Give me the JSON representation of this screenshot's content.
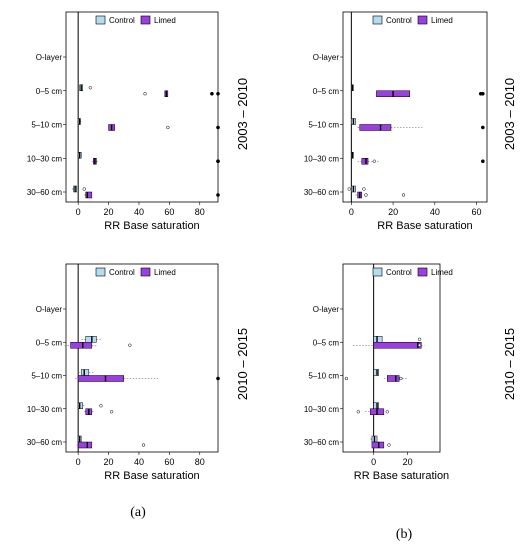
{
  "figure": {
    "period_labels": [
      "2003 – 2010",
      "2010 – 2015"
    ],
    "subfigure_labels": [
      "(a)",
      "(b)"
    ]
  },
  "colors": {
    "control": "#b3dcf0",
    "limed": "#9b3fe0",
    "axis": "#000000",
    "whisker": "#555555"
  },
  "chart_data": [
    {
      "id": "a-2003-2010",
      "type": "boxplot",
      "categories": [
        "O-layer",
        "0–5 cm",
        "5–10 cm",
        "10–30 cm",
        "30–60 cm"
      ],
      "category_labels": [
        "O-layer",
        "0–5 cm",
        "5–10 cm",
        "10–30 cm",
        "30–60 cm"
      ],
      "xlabel": "RR Base saturation",
      "xlim": [
        -8,
        92
      ],
      "xticks": [
        0,
        20,
        40,
        60,
        80
      ],
      "tick_labels": [
        "0",
        "20",
        "40",
        "60",
        "80"
      ],
      "legend": [
        "Control",
        "Limed"
      ],
      "series": [
        {
          "name": "Control",
          "boxes": [
            null,
            {
              "min": 1,
              "q1": 1,
              "median": 2,
              "q3": 3,
              "max": 3,
              "outliers": [
                8
              ]
            },
            {
              "min": 0,
              "q1": 0,
              "median": 1,
              "q3": 1.5,
              "max": 2,
              "outliers": []
            },
            {
              "min": 0,
              "q1": 0,
              "median": 1,
              "q3": 2,
              "max": 2,
              "outliers": []
            },
            {
              "min": -4,
              "q1": -3,
              "median": -2,
              "q3": -1,
              "max": -1,
              "outliers": [
                4
              ]
            }
          ]
        },
        {
          "name": "Limed",
          "boxes": [
            null,
            {
              "min": 57,
              "q1": 57,
              "median": 58,
              "q3": 59,
              "max": 59,
              "outliers": [
                44,
                88,
                92
              ]
            },
            {
              "min": 20,
              "q1": 20,
              "median": 22,
              "q3": 24,
              "max": 24,
              "outliers": [
                59,
                92
              ]
            },
            {
              "min": 9,
              "q1": 10,
              "median": 11,
              "q3": 12,
              "max": 13,
              "outliers": [
                92,
                92
              ]
            },
            {
              "min": 4,
              "q1": 5,
              "median": 6,
              "q3": 9,
              "max": 9,
              "outliers": [
                92
              ]
            }
          ]
        }
      ]
    },
    {
      "id": "b-2003-2010",
      "type": "boxplot",
      "categories": [
        "O-layer",
        "0–5 cm",
        "5–10 cm",
        "10–30 cm",
        "30–60 cm"
      ],
      "category_labels": [
        "O-layer",
        "0–5 cm",
        "5–10 cm",
        "10–30 cm",
        "30–60 cm"
      ],
      "xlabel": "RR Base saturation",
      "xlim": [
        -4,
        65
      ],
      "xticks": [
        0,
        20,
        40,
        60
      ],
      "tick_labels": [
        "0",
        "20",
        "40",
        "60"
      ],
      "legend": [
        "Control",
        "Limed"
      ],
      "series": [
        {
          "name": "Control",
          "boxes": [
            null,
            {
              "min": 0,
              "q1": 0,
              "median": 0.5,
              "q3": 1,
              "max": 1,
              "outliers": []
            },
            {
              "min": 0,
              "q1": 0,
              "median": 1,
              "q3": 2,
              "max": 2,
              "outliers": []
            },
            {
              "min": 0,
              "q1": 0,
              "median": 0.5,
              "q3": 1,
              "max": 1,
              "outliers": []
            },
            {
              "min": -1,
              "q1": 0,
              "median": 1,
              "q3": 2,
              "max": 2,
              "outliers": [
                -1,
                6
              ]
            }
          ]
        },
        {
          "name": "Limed",
          "boxes": [
            null,
            {
              "min": 12,
              "q1": 12,
              "median": 20,
              "q3": 28,
              "max": 28,
              "outliers": [
                62,
                63
              ]
            },
            {
              "min": 3,
              "q1": 4,
              "median": 14,
              "q3": 19,
              "max": 34,
              "outliers": [
                63
              ]
            },
            {
              "min": 3,
              "q1": 5,
              "median": 7,
              "q3": 8,
              "max": 13,
              "outliers": [
                11,
                63
              ]
            },
            {
              "min": 2,
              "q1": 3,
              "median": 4,
              "q3": 5,
              "max": 5,
              "outliers": [
                7,
                25
              ]
            }
          ]
        }
      ]
    },
    {
      "id": "a-2010-2015",
      "type": "boxplot",
      "categories": [
        "O-layer",
        "0–5 cm",
        "5–10 cm",
        "10–30 cm",
        "30–60 cm"
      ],
      "category_labels": [
        "O-layer",
        "0–5 cm",
        "5–10 cm",
        "10–30 cm",
        "30–60 cm"
      ],
      "xlabel": "RR Base saturation",
      "xlim": [
        -8,
        92
      ],
      "xticks": [
        0,
        20,
        40,
        60,
        80
      ],
      "tick_labels": [
        "0",
        "20",
        "40",
        "60",
        "80"
      ],
      "legend": [
        "Control",
        "Limed"
      ],
      "series": [
        {
          "name": "Control",
          "boxes": [
            null,
            {
              "min": 2,
              "q1": 5,
              "median": 9,
              "q3": 12,
              "max": 15,
              "outliers": []
            },
            {
              "min": 0,
              "q1": 2,
              "median": 4,
              "q3": 7,
              "max": 10,
              "outliers": []
            },
            {
              "min": 0,
              "q1": 0,
              "median": 1,
              "q3": 3,
              "max": 4,
              "outliers": [
                15
              ]
            },
            {
              "min": 0,
              "q1": 0,
              "median": 1,
              "q3": 2,
              "max": 2,
              "outliers": []
            }
          ]
        },
        {
          "name": "Limed",
          "boxes": [
            null,
            {
              "min": -9,
              "q1": -5,
              "median": 3,
              "q3": 9,
              "max": 12,
              "outliers": [
                34
              ]
            },
            {
              "min": -2,
              "q1": 0,
              "median": 18,
              "q3": 30,
              "max": 53,
              "outliers": [
                92
              ]
            },
            {
              "min": 4,
              "q1": 5,
              "median": 7,
              "q3": 9,
              "max": 10,
              "outliers": [
                22
              ]
            },
            {
              "min": -1,
              "q1": 0,
              "median": 6,
              "q3": 9,
              "max": 9,
              "outliers": [
                43
              ]
            }
          ]
        }
      ]
    },
    {
      "id": "b-2010-2015",
      "type": "boxplot",
      "categories": [
        "O-layer",
        "0–5 cm",
        "5–10 cm",
        "10–30 cm",
        "30–60 cm"
      ],
      "category_labels": [
        "O-layer",
        "0–5 cm",
        "5–10 cm",
        "10–30 cm",
        "30–60 cm"
      ],
      "xlabel": "RR Base saturation",
      "xlim": [
        -18,
        39
      ],
      "xticks": [
        0,
        20
      ],
      "tick_labels": [
        "0",
        "20"
      ],
      "legend": [
        "Control",
        "Limed"
      ],
      "series": [
        {
          "name": "Control",
          "boxes": [
            null,
            {
              "min": 0,
              "q1": 0,
              "median": 2,
              "q3": 5,
              "max": 5,
              "outliers": [
                27
              ]
            },
            {
              "min": 0,
              "q1": 0,
              "median": 2,
              "q3": 3,
              "max": 3,
              "outliers": []
            },
            {
              "min": 0,
              "q1": 0,
              "median": 2,
              "q3": 3,
              "max": 3,
              "outliers": []
            },
            {
              "min": -2,
              "q1": -1,
              "median": 0.5,
              "q3": 2,
              "max": 2,
              "outliers": []
            }
          ]
        },
        {
          "name": "Limed",
          "boxes": [
            null,
            {
              "min": -12,
              "q1": 0,
              "median": 26,
              "q3": 28,
              "max": 30,
              "outliers": [
                27
              ]
            },
            {
              "min": 6,
              "q1": 8,
              "median": 13,
              "q3": 15,
              "max": 20,
              "outliers": [
                -16,
                16
              ]
            },
            {
              "min": -5,
              "q1": -2,
              "median": 2,
              "q3": 6,
              "max": 6,
              "outliers": [
                -9,
                8
              ]
            },
            {
              "min": -1,
              "q1": -1,
              "median": 3,
              "q3": 6,
              "max": 6,
              "outliers": [
                9
              ]
            }
          ]
        }
      ]
    }
  ]
}
